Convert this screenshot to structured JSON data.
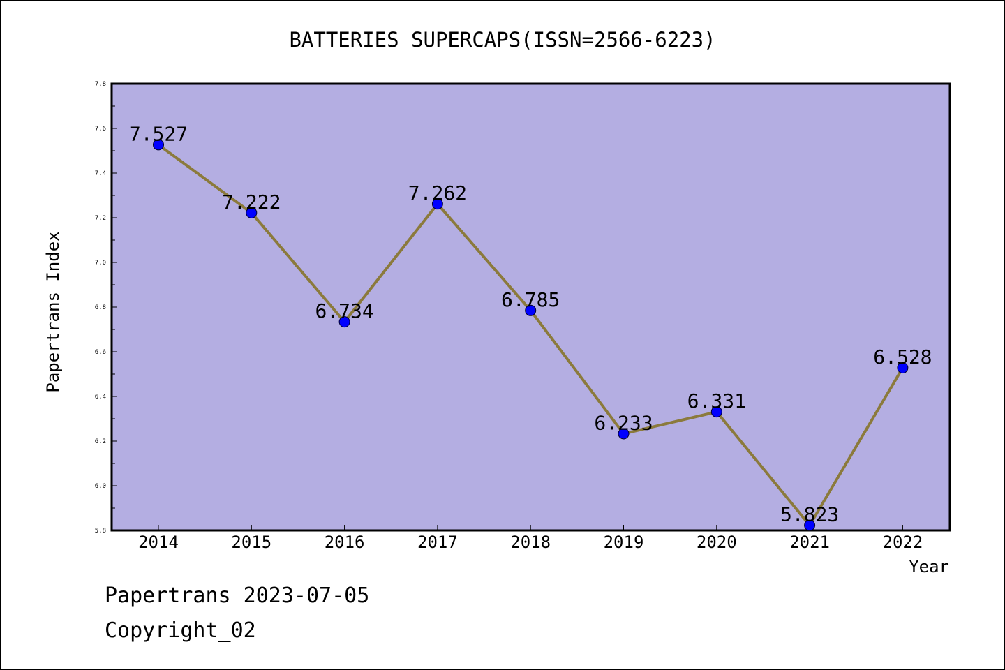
{
  "chart_data": {
    "type": "line",
    "title": "BATTERIES SUPERCAPS(ISSN=2566-6223)",
    "xlabel": "Year",
    "ylabel": "Papertrans Index",
    "categories": [
      "2014",
      "2015",
      "2016",
      "2017",
      "2018",
      "2019",
      "2020",
      "2021",
      "2022"
    ],
    "values": [
      7.527,
      7.222,
      6.734,
      7.262,
      6.785,
      6.233,
      6.331,
      5.823,
      6.528
    ],
    "data_labels": [
      "7.527",
      "7.222",
      "6.734",
      "7.262",
      "6.785",
      "6.233",
      "6.331",
      "5.823",
      "6.528"
    ],
    "ylim": [
      5.8,
      7.8
    ],
    "yticks": [
      "5.8",
      "6.0",
      "6.2",
      "6.4",
      "6.6",
      "6.8",
      "7.0",
      "7.2",
      "7.4",
      "7.6",
      "7.8"
    ],
    "grid": false,
    "colors": {
      "plot_background": "#b4aee2",
      "line": "#8b7a3c",
      "marker": "#0000ff"
    }
  },
  "footer": {
    "line1": "Papertrans 2023-07-05",
    "line2": "Copyright_02"
  }
}
